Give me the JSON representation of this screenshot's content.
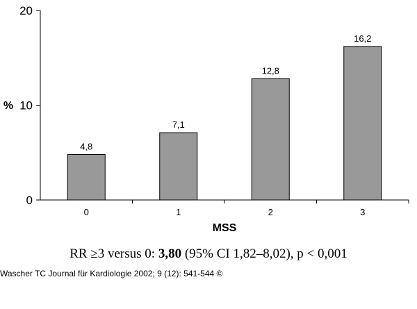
{
  "chart_data": {
    "type": "bar",
    "categories": [
      "0",
      "1",
      "2",
      "3"
    ],
    "values": [
      4.8,
      7.1,
      12.8,
      16.2
    ],
    "value_labels": [
      "4,8",
      "7,1",
      "12,8",
      "16,2"
    ],
    "xlabel": "MSS",
    "ylabel": "%",
    "ylim": [
      0,
      20
    ],
    "yticks": [
      0,
      10,
      20
    ],
    "bar_color": "#999999",
    "grid": false
  },
  "stat_line": {
    "prefix": "RR ≥3 versus 0: ",
    "value": "3,80",
    "suffix": " (95% CI 1,82–8,02), p < 0,001"
  },
  "credit": "Wascher TC Journal für Kardiologie 2002; 9 (12): 541-544 ©"
}
